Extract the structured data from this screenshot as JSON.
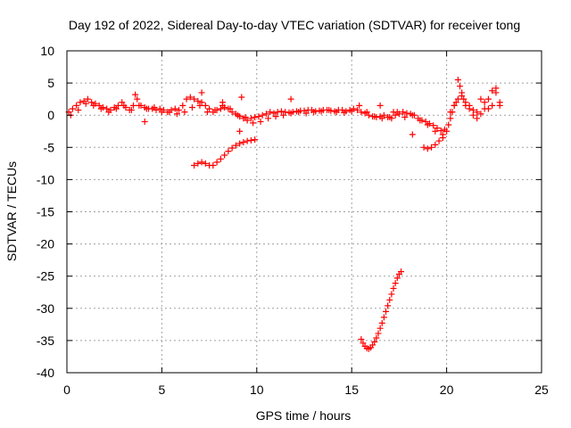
{
  "chart_data": {
    "type": "scatter",
    "title": "Day 192 of 2022, Sidereal Day-to-day VTEC variation (SDTVAR) for receiver tong",
    "xlabel": "GPS time / hours",
    "ylabel": "SDTVAR / TECUs",
    "xlim": [
      0,
      25
    ],
    "ylim": [
      -40,
      10
    ],
    "x_ticks": [
      0,
      5,
      10,
      15,
      20,
      25
    ],
    "y_ticks": [
      -40,
      -35,
      -30,
      -25,
      -20,
      -15,
      -10,
      -5,
      0,
      5,
      10
    ],
    "grid": true,
    "marker": "plus",
    "color": "#ff0000",
    "series": [
      {
        "name": "main-band-a",
        "x": [
          0.1,
          0.3,
          0.5,
          0.7,
          0.9,
          1.1,
          1.3,
          1.5,
          1.7,
          1.9,
          2.1,
          2.3,
          2.5,
          2.7,
          2.9,
          3.1,
          3.3,
          3.5,
          3.7,
          3.9,
          4.1,
          4.3,
          4.5,
          4.7,
          4.9,
          5.1,
          5.3,
          5.5,
          5.7,
          5.9,
          6.1,
          6.3,
          6.5,
          6.7,
          6.9,
          7.1,
          7.3,
          7.5,
          7.7,
          7.9,
          8.1,
          8.3,
          8.5,
          8.7,
          8.9,
          9.1,
          9.3,
          9.5,
          9.7,
          9.9,
          10.1,
          10.3,
          10.5,
          10.7,
          10.9,
          11.1,
          11.3,
          11.5,
          11.7,
          11.9,
          12.1,
          12.3,
          12.5,
          12.7,
          12.9,
          13.1,
          13.3,
          13.5,
          13.7,
          13.9,
          14.1,
          14.3,
          14.5,
          14.7,
          14.9,
          15.1,
          15.3,
          15.5,
          15.7,
          15.9,
          16.1,
          16.3,
          16.5,
          16.7,
          16.9,
          17.1,
          17.3,
          17.5,
          17.7,
          17.9,
          18.1,
          18.3,
          18.5,
          18.7,
          18.9,
          19.1,
          19.3,
          19.5,
          19.7,
          19.9
        ],
        "y": [
          0.5,
          1.0,
          1.5,
          2.0,
          2.2,
          2.5,
          2.0,
          1.8,
          1.5,
          1.2,
          1.0,
          0.8,
          1.2,
          1.5,
          2.0,
          1.2,
          0.8,
          1.5,
          2.5,
          1.5,
          1.2,
          1.0,
          1.0,
          0.8,
          1.0,
          0.8,
          0.5,
          0.8,
          1.0,
          0.8,
          1.5,
          2.5,
          2.8,
          2.5,
          2.2,
          2.0,
          1.5,
          1.0,
          0.5,
          0.8,
          1.0,
          1.2,
          1.0,
          0.5,
          0.2,
          -0.2,
          -0.5,
          -0.8,
          -0.5,
          -0.3,
          -0.2,
          0.0,
          0.2,
          0.5,
          0.3,
          0.5,
          0.6,
          0.5,
          0.4,
          0.5,
          0.6,
          0.7,
          0.7,
          0.8,
          0.8,
          0.6,
          0.7,
          0.8,
          0.8,
          0.7,
          0.6,
          0.8,
          0.8,
          0.6,
          0.8,
          1.0,
          0.8,
          0.5,
          0.3,
          0.0,
          -0.2,
          -0.3,
          -0.2,
          0.0,
          -0.3,
          -0.5,
          0.0,
          0.2,
          0.5,
          0.3,
          0.2,
          0.0,
          -0.5,
          -0.8,
          -1.0,
          -1.3,
          -1.6,
          -2.0,
          -2.4,
          -2.2
        ]
      },
      {
        "name": "main-band-b",
        "x": [
          0.2,
          0.6,
          1.0,
          1.4,
          1.8,
          2.2,
          2.6,
          3.0,
          3.4,
          3.8,
          4.2,
          4.6,
          5.0,
          5.4,
          5.8,
          6.2,
          6.6,
          7.0,
          7.4,
          7.8,
          8.2,
          8.6,
          9.0,
          9.4,
          9.8,
          10.2,
          10.6,
          11.0,
          11.4,
          11.8,
          12.2,
          12.6,
          13.0,
          13.4,
          13.8,
          14.2,
          14.6,
          15.0,
          15.4,
          15.8,
          16.2,
          16.6,
          17.0,
          17.4,
          17.8,
          18.2,
          18.6,
          19.0,
          19.4,
          19.8
        ],
        "y": [
          0.0,
          0.8,
          1.8,
          1.5,
          1.0,
          0.5,
          1.0,
          1.5,
          0.8,
          1.5,
          1.0,
          1.2,
          0.5,
          0.5,
          0.2,
          0.5,
          1.2,
          1.5,
          0.5,
          0.8,
          1.5,
          1.0,
          0.0,
          -0.3,
          -1.2,
          -1.0,
          -0.5,
          -0.2,
          0.0,
          0.3,
          0.5,
          0.3,
          0.5,
          0.6,
          0.8,
          0.5,
          0.4,
          0.6,
          1.5,
          0.5,
          -0.2,
          -0.5,
          -0.3,
          0.5,
          -0.3,
          0.0,
          -0.8,
          -1.5,
          -2.5,
          -3.0
        ]
      },
      {
        "name": "outliers",
        "x": [
          3.6,
          4.1,
          7.1,
          8.2,
          9.1,
          9.2,
          11.8,
          16.5,
          17.2,
          18.2
        ],
        "y": [
          3.2,
          -1.0,
          3.5,
          2.0,
          -2.5,
          2.8,
          2.5,
          1.5,
          0.5,
          -3.0
        ]
      },
      {
        "name": "late-track",
        "x": [
          18.8,
          19.0,
          19.2,
          19.4,
          19.6,
          19.8,
          20.0,
          20.1,
          20.2,
          20.3,
          20.4,
          20.5,
          20.6,
          20.7,
          20.8,
          20.9,
          21.0,
          21.2,
          21.4,
          21.6,
          21.8,
          22.0,
          22.2,
          22.4,
          22.6,
          22.8
        ],
        "y": [
          -5.0,
          -5.2,
          -5.0,
          -4.6,
          -4.0,
          -3.5,
          -2.5,
          -1.5,
          -0.5,
          0.5,
          1.5,
          2.0,
          5.5,
          4.5,
          3.5,
          2.5,
          1.5,
          1.0,
          0.0,
          0.5,
          2.5,
          2.0,
          1.0,
          1.5,
          3.5,
          2.0
        ]
      },
      {
        "name": "late-track-b",
        "x": [
          20.2,
          20.4,
          20.6,
          20.8,
          21.0,
          21.2,
          21.4,
          21.6,
          21.8,
          22.0,
          22.2,
          22.4,
          22.6,
          22.8
        ],
        "y": [
          0.5,
          1.5,
          2.5,
          3.0,
          2.0,
          1.5,
          0.8,
          -0.5,
          0.2,
          1.0,
          2.5,
          3.8,
          4.2,
          1.5
        ]
      },
      {
        "name": "mid-arc",
        "x": [
          6.7,
          6.9,
          7.1,
          7.3,
          7.5,
          7.7,
          7.9,
          8.1,
          8.3,
          8.5,
          8.7,
          8.9,
          9.1,
          9.3,
          9.5,
          9.7,
          9.9
        ],
        "y": [
          -7.8,
          -7.5,
          -7.3,
          -7.5,
          -7.8,
          -7.8,
          -7.3,
          -6.8,
          -6.2,
          -5.6,
          -5.1,
          -4.7,
          -4.4,
          -4.2,
          -4.0,
          -3.9,
          -3.8
        ]
      },
      {
        "name": "deep-arc",
        "x": [
          15.5,
          15.6,
          15.7,
          15.8,
          15.9,
          16.0,
          16.1,
          16.2,
          16.3,
          16.4,
          16.5,
          16.6,
          16.7,
          16.8,
          16.9,
          17.0,
          17.1,
          17.2,
          17.3,
          17.4,
          17.5,
          17.6
        ],
        "y": [
          -34.8,
          -35.4,
          -35.9,
          -36.2,
          -36.3,
          -36.1,
          -35.7,
          -35.2,
          -34.6,
          -33.9,
          -33.1,
          -32.3,
          -31.4,
          -30.5,
          -29.6,
          -28.7,
          -27.8,
          -26.9,
          -26.1,
          -25.3,
          -24.7,
          -24.3
        ]
      }
    ]
  }
}
